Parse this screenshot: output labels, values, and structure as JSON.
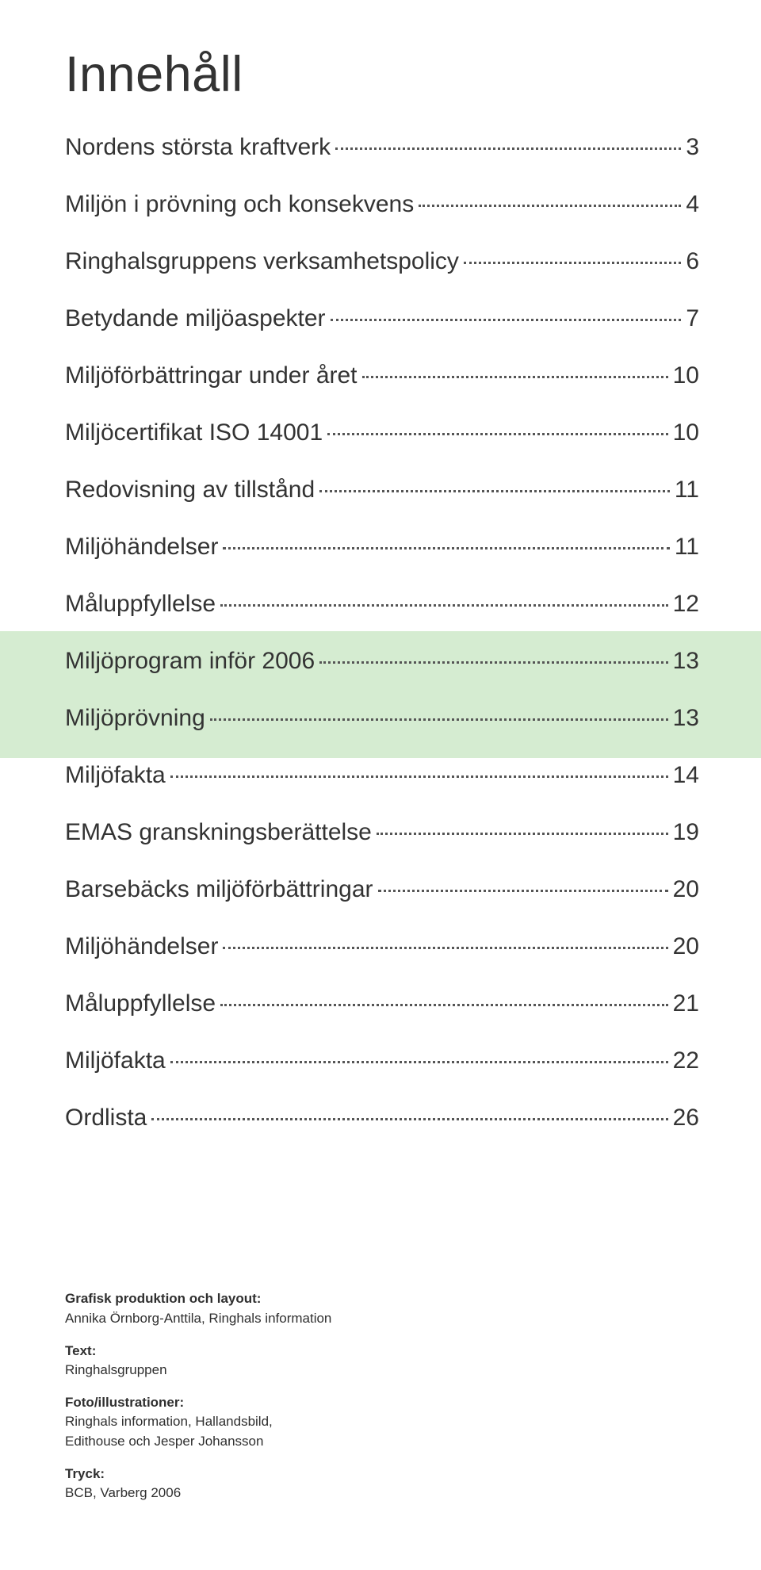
{
  "title": "Innehåll",
  "toc": [
    {
      "label": "Nordens största kraftverk",
      "page": "3",
      "highlighted": false
    },
    {
      "label": "Miljön i prövning och konsekvens",
      "page": "4",
      "highlighted": false
    },
    {
      "label": "Ringhalsgruppens verksamhetspolicy",
      "page": "6",
      "highlighted": false
    },
    {
      "label": "Betydande miljöaspekter",
      "page": "7",
      "highlighted": false
    },
    {
      "label": "Miljöförbättringar under året",
      "page": "10",
      "highlighted": false
    },
    {
      "label": "Miljöcertifikat ISO 14001",
      "page": "10",
      "highlighted": false
    },
    {
      "label": "Redovisning av tillstånd",
      "page": "11",
      "highlighted": false
    },
    {
      "label": "Miljöhändelser",
      "page": "11",
      "highlighted": false
    },
    {
      "label": "Måluppfyllelse",
      "page": "12",
      "highlighted": false
    },
    {
      "label": "Miljöprogram inför 2006",
      "page": "13",
      "highlighted": true
    },
    {
      "label": "Miljöprövning",
      "page": "13",
      "highlighted": true
    },
    {
      "label": "Miljöfakta",
      "page": "14",
      "highlighted": false
    },
    {
      "label": "EMAS granskningsberättelse",
      "page": "19",
      "highlighted": false
    },
    {
      "label": "Barsebäcks miljöförbättringar",
      "page": "20",
      "highlighted": false
    },
    {
      "label": "Miljöhändelser",
      "page": "20",
      "highlighted": false
    },
    {
      "label": "Måluppfyllelse",
      "page": "21",
      "highlighted": false
    },
    {
      "label": "Miljöfakta",
      "page": "22",
      "highlighted": false
    },
    {
      "label": "Ordlista",
      "page": "26",
      "highlighted": false
    }
  ],
  "highlight_color": "#d5ecd1",
  "credits": [
    {
      "head": "Grafisk produktion och layout:",
      "body": "Annika Örnborg-Anttila, Ringhals information"
    },
    {
      "head": "Text:",
      "body": "Ringhalsgruppen"
    },
    {
      "head": "Foto/illustrationer:",
      "body": "Ringhals information, Hallandsbild,\nEdithouse och Jesper Johansson"
    },
    {
      "head": "Tryck:",
      "body": "BCB, Varberg 2006"
    }
  ]
}
